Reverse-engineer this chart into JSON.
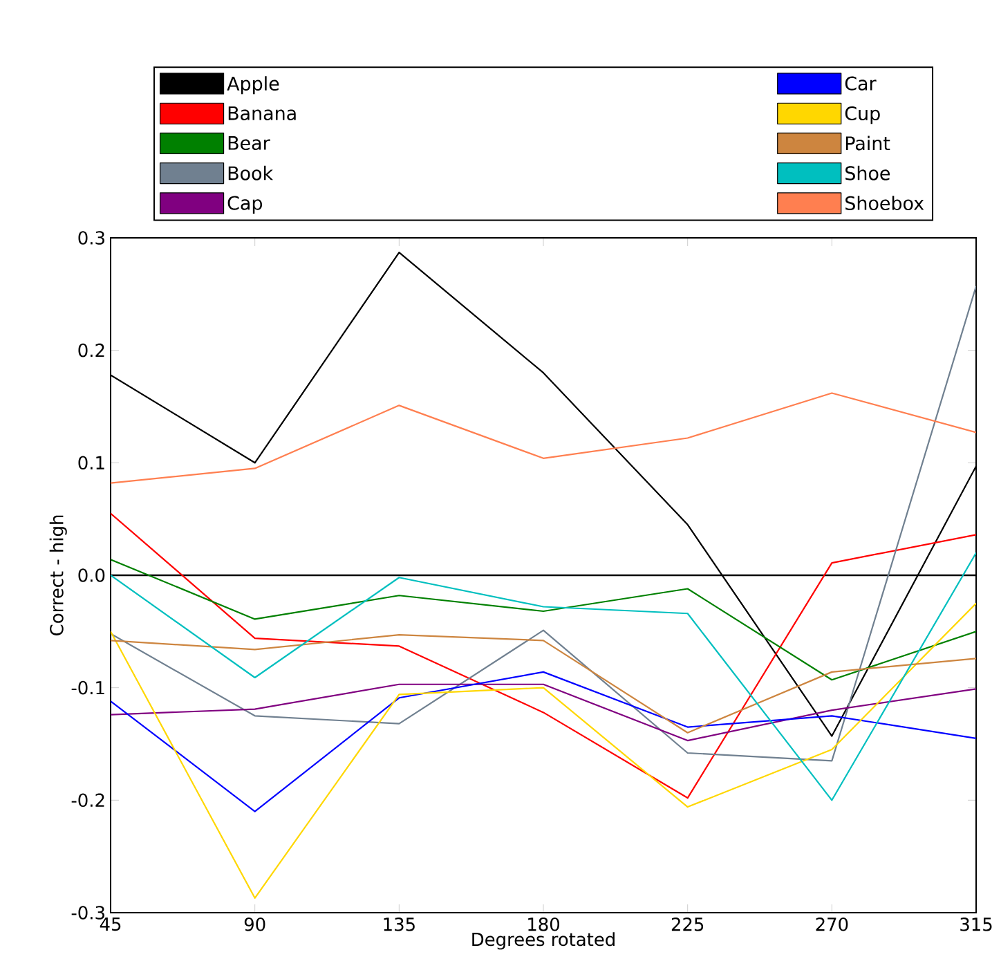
{
  "chart_data": {
    "type": "line",
    "xlabel": "Degrees rotated",
    "ylabel": "Correct - high",
    "x": [
      45,
      90,
      135,
      180,
      225,
      270,
      315
    ],
    "xlim": [
      45,
      315
    ],
    "xticks": [
      45,
      90,
      135,
      180,
      225,
      270,
      315
    ],
    "ylim": [
      -0.3,
      0.3
    ],
    "yticks": [
      -0.3,
      -0.2,
      -0.1,
      {
        "value": 0,
        "label": "0.0"
      },
      0.1,
      0.2,
      0.3
    ],
    "legend": "top",
    "grid": false,
    "marker": "none",
    "line_style": "solid",
    "ref_lines": [
      {
        "axis": "y",
        "value": 0,
        "color": "#000000"
      }
    ],
    "series": [
      {
        "name": "Apple",
        "color": "#000000",
        "values": [
          0.178,
          0.1,
          0.287,
          0.18,
          0.045,
          -0.143,
          0.097
        ]
      },
      {
        "name": "Banana",
        "color": "#ff0000",
        "values": [
          0.055,
          -0.056,
          -0.063,
          -0.122,
          -0.198,
          0.011,
          0.036
        ]
      },
      {
        "name": "Bear",
        "color": "#008000",
        "values": [
          0.014,
          -0.039,
          -0.018,
          -0.032,
          -0.012,
          -0.093,
          -0.05
        ]
      },
      {
        "name": "Book",
        "color": "#708090",
        "values": [
          -0.052,
          -0.125,
          -0.132,
          -0.049,
          -0.158,
          -0.165,
          0.257
        ]
      },
      {
        "name": "Cap",
        "color": "#800080",
        "values": [
          -0.124,
          -0.119,
          -0.097,
          -0.097,
          -0.147,
          -0.12,
          -0.101
        ]
      },
      {
        "name": "Car",
        "color": "#0000ff",
        "values": [
          -0.112,
          -0.21,
          -0.109,
          -0.086,
          -0.135,
          -0.125,
          -0.145
        ]
      },
      {
        "name": "Cup",
        "color": "#ffd700",
        "values": [
          -0.05,
          -0.287,
          -0.106,
          -0.1,
          -0.206,
          -0.155,
          -0.025
        ]
      },
      {
        "name": "Paint",
        "color": "#cd853f",
        "values": [
          -0.058,
          -0.066,
          -0.053,
          -0.058,
          -0.14,
          -0.086,
          -0.074
        ]
      },
      {
        "name": "Shoe",
        "color": "#00bfbf",
        "values": [
          0.0,
          -0.091,
          -0.002,
          -0.028,
          -0.034,
          -0.2,
          0.02
        ]
      },
      {
        "name": "Shoebox",
        "color": "#ff7f50",
        "values": [
          0.082,
          0.095,
          0.151,
          0.104,
          0.122,
          0.162,
          0.127
        ]
      }
    ]
  }
}
